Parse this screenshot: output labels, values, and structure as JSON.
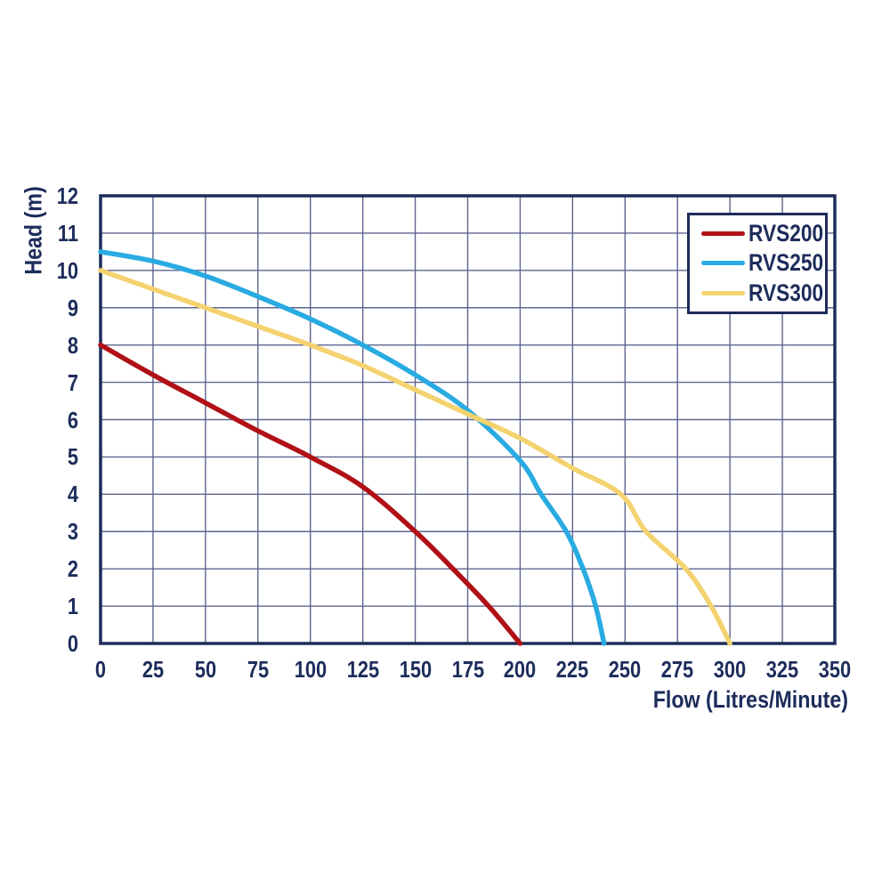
{
  "chart_data": {
    "type": "line",
    "title": "",
    "xlabel": "Flow (Litres/Minute)",
    "ylabel": "Head (m)",
    "xlim": [
      0,
      350
    ],
    "ylim": [
      0,
      12
    ],
    "x_ticks": [
      0,
      25,
      50,
      75,
      100,
      125,
      150,
      175,
      200,
      225,
      250,
      275,
      300,
      325,
      350
    ],
    "y_ticks": [
      0,
      1,
      2,
      3,
      4,
      5,
      6,
      7,
      8,
      9,
      10,
      11,
      12
    ],
    "grid": true,
    "legend_position": "top-right",
    "series": [
      {
        "name": "RVS200",
        "color": "#b01116",
        "points": [
          [
            0,
            8.0
          ],
          [
            25,
            7.2
          ],
          [
            50,
            6.45
          ],
          [
            75,
            5.7
          ],
          [
            100,
            5.0
          ],
          [
            125,
            4.2
          ],
          [
            150,
            3.0
          ],
          [
            168,
            2.0
          ],
          [
            185,
            1.0
          ],
          [
            200,
            0
          ]
        ]
      },
      {
        "name": "RVS250",
        "color": "#29abe2",
        "points": [
          [
            0,
            10.5
          ],
          [
            25,
            10.25
          ],
          [
            50,
            9.85
          ],
          [
            75,
            9.3
          ],
          [
            100,
            8.7
          ],
          [
            125,
            8.0
          ],
          [
            150,
            7.2
          ],
          [
            175,
            6.25
          ],
          [
            200,
            4.9
          ],
          [
            210,
            4.0
          ],
          [
            222,
            3.0
          ],
          [
            230,
            2.0
          ],
          [
            236,
            1.0
          ],
          [
            240,
            0
          ]
        ]
      },
      {
        "name": "RVS300",
        "color": "#f3d26f",
        "points": [
          [
            0,
            10.0
          ],
          [
            25,
            9.5
          ],
          [
            50,
            9.0
          ],
          [
            75,
            8.5
          ],
          [
            100,
            8.0
          ],
          [
            125,
            7.45
          ],
          [
            150,
            6.8
          ],
          [
            175,
            6.15
          ],
          [
            200,
            5.5
          ],
          [
            225,
            4.7
          ],
          [
            248,
            4.0
          ],
          [
            260,
            3.0
          ],
          [
            279,
            2.0
          ],
          [
            291,
            1.0
          ],
          [
            300,
            0
          ]
        ]
      }
    ]
  },
  "colors": {
    "axis": "#1d2c5b",
    "grid": "#5d6590",
    "text": "#1d2c5b",
    "background": "#ffffff"
  }
}
